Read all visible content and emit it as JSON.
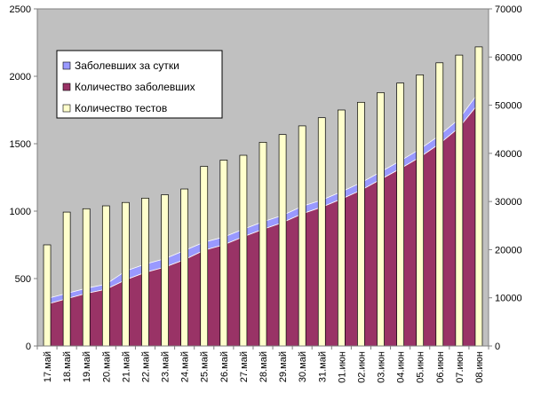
{
  "chart_data": {
    "type": "area+bar",
    "title": "",
    "categories": [
      "17.май",
      "18.май",
      "19.май",
      "20.май",
      "21.май",
      "22.май",
      "23.май",
      "24.май",
      "25.май",
      "26.май",
      "27.май",
      "28.май",
      "29.май",
      "30.май",
      "31.май",
      "01.июн",
      "02.июн",
      "03.июн",
      "04.июн",
      "05.июн",
      "06.июн",
      "07.июн",
      "08.июн"
    ],
    "series": [
      {
        "name": "Заболевших за сутки",
        "type": "stacked-area",
        "axis": "left",
        "color": "#9999ff",
        "values": [
          42,
          40,
          38,
          38,
          66,
          62,
          62,
          68,
          60,
          58,
          56,
          56,
          54,
          56,
          52,
          54,
          56,
          56,
          58,
          60,
          62,
          64,
          82
        ]
      },
      {
        "name": "Количество заболевших",
        "type": "area",
        "axis": "left",
        "color": "#993366",
        "values": [
          310,
          350,
          390,
          420,
          490,
          545,
          585,
          640,
          710,
          750,
          810,
          865,
          915,
          980,
          1030,
          1090,
          1155,
          1235,
          1315,
          1400,
          1500,
          1620,
          1800
        ]
      },
      {
        "name": "Количество тестов",
        "type": "bar",
        "axis": "right",
        "color": "#ffffcc",
        "values": [
          21000,
          27800,
          28500,
          29100,
          29800,
          30700,
          31400,
          32600,
          37300,
          38600,
          39600,
          42300,
          43900,
          45700,
          47400,
          49000,
          50600,
          52600,
          54600,
          56300,
          58800,
          60400,
          62100
        ]
      }
    ],
    "y_left": {
      "min": 0,
      "max": 2500,
      "ticks": [
        0,
        500,
        1000,
        1500,
        2000,
        2500
      ]
    },
    "y_right": {
      "min": 0,
      "max": 70000,
      "ticks": [
        0,
        10000,
        20000,
        30000,
        40000,
        50000,
        60000,
        70000
      ]
    },
    "legend_position": "top-left",
    "plot_background": "#c0c0c0"
  }
}
